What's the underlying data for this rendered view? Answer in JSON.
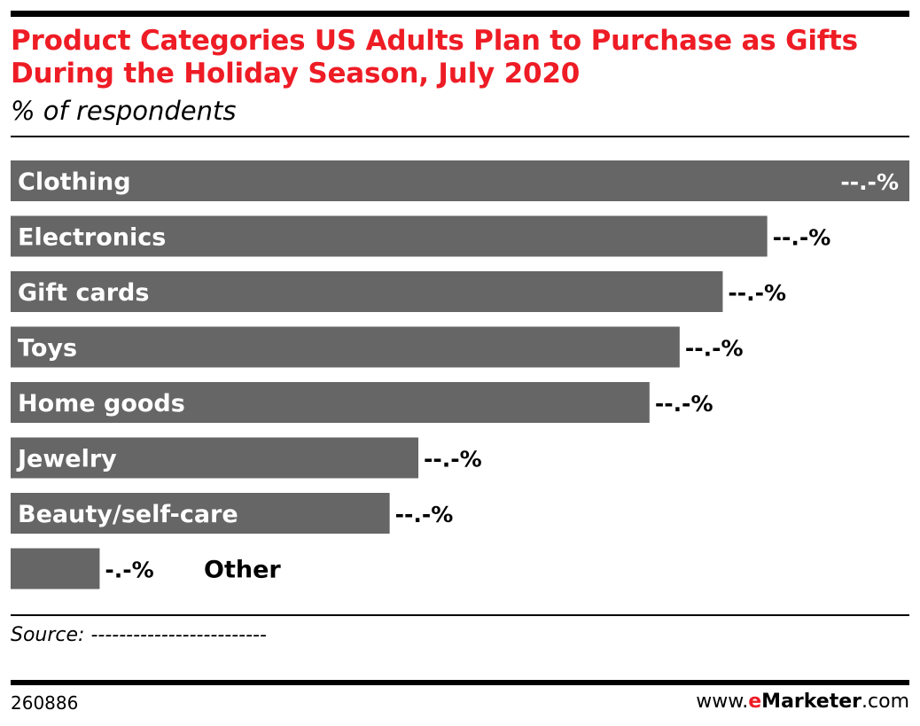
{
  "header": {
    "title": "Product Categories US Adults Plan to Purchase as Gifts During the Holiday Season, July 2020",
    "subtitle": "% of respondents"
  },
  "footer": {
    "source": "Source: -------------------------",
    "chart_id": "260886",
    "brand_prefix": "www.",
    "brand_e": "e",
    "brand_name": "Marketer",
    "brand_suffix": ".com"
  },
  "colors": {
    "title": "#ee1c25",
    "bar": "#666666",
    "bar_label": "#ffffff",
    "value_label": "#000000"
  },
  "chart_data": {
    "type": "bar",
    "orientation": "horizontal",
    "categories": [
      "Clothing",
      "Electronics",
      "Gift cards",
      "Toys",
      "Home goods",
      "Jewelry",
      "Beauty/self-care",
      "Other"
    ],
    "values": [
      62.6,
      52.7,
      49.6,
      46.6,
      44.5,
      28.4,
      26.4,
      6.2
    ],
    "value_labels": [
      "--.-%",
      "--.-%",
      "--.-%",
      "--.-%",
      "--.-%",
      "--.-%",
      "--.-%",
      "-.-%"
    ],
    "xlim": [
      0,
      62.6
    ],
    "grid": false,
    "legend": "none"
  }
}
